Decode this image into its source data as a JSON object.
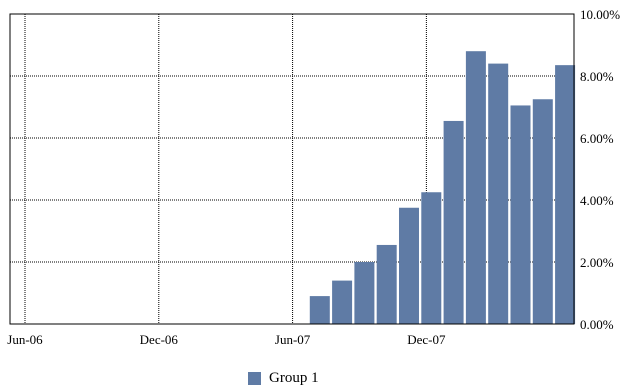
{
  "chart_data": {
    "type": "bar",
    "x_tick_labels": [
      "Jun-06",
      "Dec-06",
      "Jun-07",
      "Dec-07"
    ],
    "y_tick_labels": [
      "0.00%",
      "2.00%",
      "4.00%",
      "6.00%",
      "8.00%",
      "10.00%"
    ],
    "ylim": [
      0,
      10
    ],
    "y_axis_side": "right",
    "grid": true,
    "legend_placement": "bottom",
    "series": [
      {
        "name": "Group 1",
        "color": "#5f7ba5",
        "points": [
          {
            "x": "Jul-07",
            "y": 0.9
          },
          {
            "x": "Aug-07",
            "y": 1.4
          },
          {
            "x": "Sep-07",
            "y": 2.0
          },
          {
            "x": "Oct-07",
            "y": 2.55
          },
          {
            "x": "Nov-07",
            "y": 3.75
          },
          {
            "x": "Dec-07",
            "y": 4.25
          },
          {
            "x": "Jan-08",
            "y": 6.55
          },
          {
            "x": "Feb-08",
            "y": 8.8
          },
          {
            "x": "Mar-08",
            "y": 8.4
          },
          {
            "x": "Apr-08",
            "y": 7.05
          },
          {
            "x": "May-08",
            "y": 7.25
          },
          {
            "x": "Jun-08",
            "y": 8.35
          }
        ]
      }
    ]
  }
}
